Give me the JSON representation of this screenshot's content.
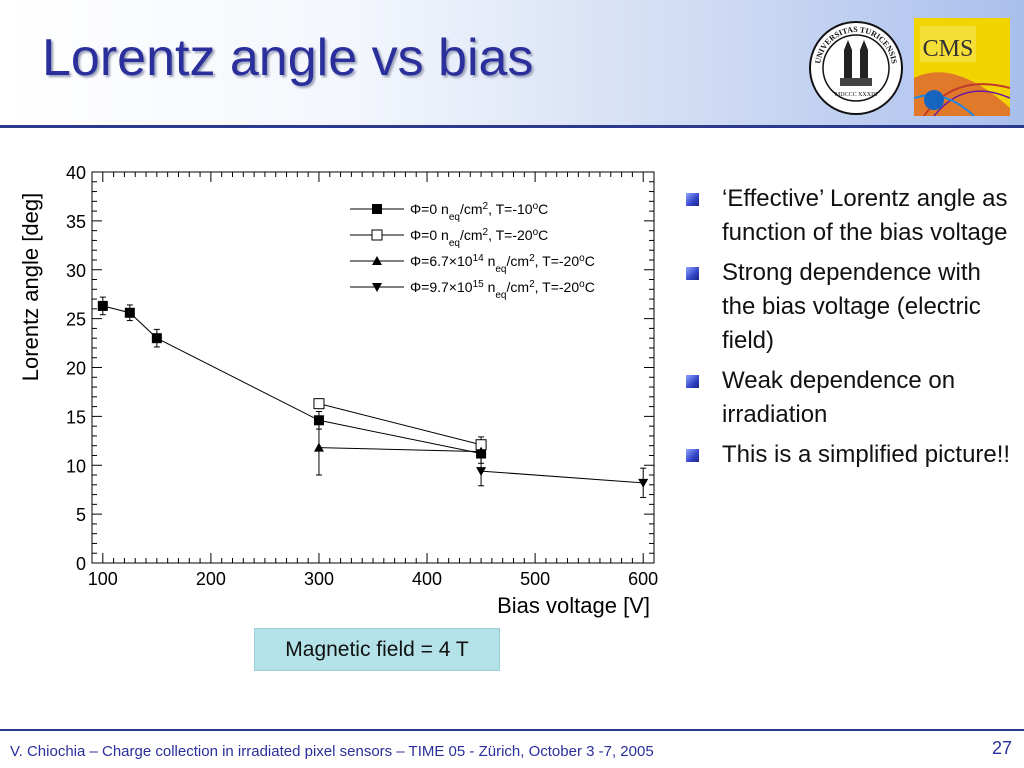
{
  "slide": {
    "title": "Lorentz angle vs bias",
    "logos": {
      "university_seal_text": "UNIVERSITAS TURICENSIS",
      "university_seal_year": "MDCCC XXXIII",
      "cms_text": "CMS"
    },
    "bullets": [
      {
        "text": "‘Effective’ Lorentz angle as function of the bias voltage"
      },
      {
        "text": "Strong dependence with the bias voltage (electric field)"
      },
      {
        "text": "Weak dependence on irradiation"
      },
      {
        "text": "This is a simplified picture!!"
      }
    ],
    "annotation": "Magnetic field = 4 T",
    "footer": "V. Chiochia – Charge collection in irradiated pixel sensors – TIME 05 - Zürich, October 3 -7, 2005",
    "page_number": "27",
    "colors": {
      "title": "#2a2f9b",
      "rule": "#2b3a8c",
      "annotation_bg": "#b3e3e8"
    }
  },
  "chart_data": {
    "type": "scatter",
    "title": "",
    "xlabel": "Bias voltage [V]",
    "ylabel": "Lorentz angle [deg]",
    "xlim": [
      90,
      610
    ],
    "ylim": [
      0,
      40
    ],
    "xticks": [
      100,
      200,
      300,
      400,
      500,
      600
    ],
    "yticks": [
      0,
      5,
      10,
      15,
      20,
      25,
      30,
      35,
      40
    ],
    "grid": false,
    "legend_position": "top-right",
    "series": [
      {
        "legend_parts": [
          "Φ=0 n",
          "eq",
          "/cm",
          "2",
          ", T=-10",
          "o",
          "C"
        ],
        "marker": "filled-square",
        "points": [
          {
            "x": 100,
            "y": 26.3,
            "err": 0.9
          },
          {
            "x": 125,
            "y": 25.6,
            "err": 0.8
          },
          {
            "x": 150,
            "y": 23.0,
            "err": 0.9
          },
          {
            "x": 300,
            "y": 14.6,
            "err": 0.9
          },
          {
            "x": 450,
            "y": 11.2,
            "err": 1.0
          }
        ]
      },
      {
        "legend_parts": [
          "Φ=0 n",
          "eq",
          "/cm",
          "2",
          ", T=-20",
          "o",
          "C"
        ],
        "marker": "open-square",
        "points": [
          {
            "x": 300,
            "y": 16.3,
            "err": 0.0
          },
          {
            "x": 450,
            "y": 12.1,
            "err": 0.8
          }
        ]
      },
      {
        "legend_parts": [
          "Φ=6.7×10",
          "14",
          " n",
          "eq",
          "/cm",
          "2",
          ", T=-20",
          "o",
          "C"
        ],
        "marker": "triangle-up",
        "points": [
          {
            "x": 300,
            "y": 11.8,
            "err": 2.8
          },
          {
            "x": 450,
            "y": 11.4,
            "err": 0.0
          }
        ]
      },
      {
        "legend_parts": [
          "Φ=9.7×10",
          "15",
          " n",
          "eq",
          "/cm",
          "2",
          ", T=-20",
          "o",
          "C"
        ],
        "marker": "triangle-down",
        "points": [
          {
            "x": 450,
            "y": 9.4,
            "err": 1.5
          },
          {
            "x": 600,
            "y": 8.2,
            "err": 1.5
          }
        ]
      }
    ]
  }
}
